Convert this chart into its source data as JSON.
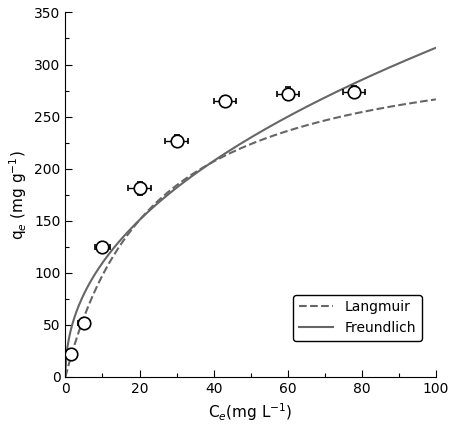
{
  "data_points": {
    "x": [
      1.5,
      5.0,
      10.0,
      20.0,
      30.0,
      43.0,
      60.0,
      78.0
    ],
    "y": [
      22.0,
      52.0,
      125.0,
      181.0,
      227.0,
      265.0,
      272.0,
      274.0
    ],
    "xerr": [
      1.0,
      1.5,
      2.0,
      3.0,
      3.0,
      3.0,
      3.0,
      3.0
    ],
    "yerr": [
      3.0,
      5.0,
      5.0,
      6.0,
      5.0,
      5.0,
      6.0,
      5.0
    ]
  },
  "langmuir": {
    "qm": 330.0,
    "KL": 0.042
  },
  "freundlich": {
    "KF": 38.0,
    "n": 0.46
  },
  "xlim": [
    0,
    100
  ],
  "ylim": [
    0,
    350
  ],
  "xticks": [
    0,
    20,
    40,
    60,
    80,
    100
  ],
  "yticks": [
    0,
    50,
    100,
    150,
    200,
    250,
    300,
    350
  ],
  "xlabel": "C$_{e}$(mg L$^{-1}$)",
  "ylabel": "q$_{e}$ (mg g$^{-1}$)",
  "legend_labels": [
    "Langmuir",
    "Freundlich"
  ],
  "line_color": "#666666",
  "marker_color": "white",
  "marker_edge_color": "black",
  "marker_size": 9,
  "marker_style": "o",
  "langmuir_linestyle": "--",
  "freundlich_linestyle": "-",
  "figsize": [
    4.56,
    4.3
  ],
  "dpi": 100
}
